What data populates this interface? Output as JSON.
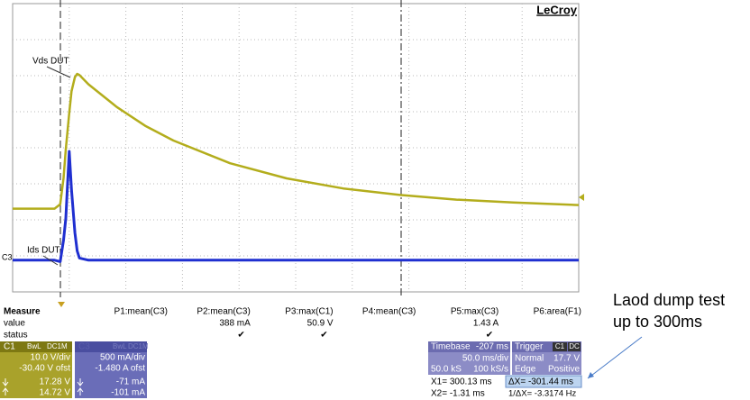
{
  "chart_data": {
    "type": "line",
    "brand": "LeCroy",
    "channel_marker": "C3",
    "x": [
      -42,
      -5,
      0,
      3,
      5,
      8,
      10,
      13,
      15,
      17,
      25,
      50,
      75,
      100,
      150,
      200,
      250,
      300,
      350,
      400,
      458
    ],
    "xlim": [
      -42,
      458
    ],
    "ylim": [
      -9.6,
      70.4
    ],
    "y2lim": [
      -0.52,
      3.48
    ],
    "grid": true,
    "series": [
      {
        "name": "Vds DUT",
        "color": "#b3ad1c",
        "values": [
          13.5,
          13.5,
          14.7,
          22,
          30,
          40,
          46,
          50,
          50.9,
          50.6,
          48.0,
          41.7,
          36.5,
          32.4,
          26.1,
          21.9,
          19.1,
          17.3,
          16.0,
          15.2,
          14.5
        ]
      },
      {
        "name": "Ids DUT",
        "color": "#1f2fd0",
        "axis": "y2",
        "values": [
          -0.08,
          -0.08,
          -0.1,
          0.2,
          0.5,
          1.43,
          0.9,
          0.3,
          0.05,
          -0.05,
          -0.08,
          -0.08,
          -0.08,
          -0.08,
          -0.08,
          -0.08,
          -0.08,
          -0.08,
          -0.08,
          -0.08,
          -0.08
        ]
      }
    ]
  },
  "measure": {
    "title": "Measure",
    "row_labels": [
      "value",
      "status"
    ],
    "columns": [
      {
        "name": "P1:mean(C3)"
      },
      {
        "name": "P2:mean(C3)",
        "value": "388 mA",
        "status": "✔"
      },
      {
        "name": "P3:max(C1)",
        "value": "50.9 V",
        "status": "✔"
      },
      {
        "name": "P4:mean(C3)"
      },
      {
        "name": "P5:max(C3)",
        "value": "1.43 A",
        "status": "✔"
      },
      {
        "name": "P6:area(F1)"
      }
    ]
  },
  "channels": [
    {
      "label": "C1",
      "tags": [
        "BwL",
        "DC1M"
      ],
      "scale": "10.0 V/div",
      "offset": "-30.40 V ofst",
      "cursor_values": [
        "17.28 V",
        "14.72 V"
      ]
    },
    {
      "label": "C3",
      "tags": [
        "BwL",
        "DC1M"
      ],
      "scale": "500 mA/div",
      "offset": "-1.480 A ofst",
      "cursor_values": [
        "-71 mA",
        "-101 mA"
      ]
    }
  ],
  "timebase": {
    "title": "Timebase",
    "delay": "-207 ms",
    "scale": "50.0 ms/div",
    "samples": "50.0 kS",
    "rate": "100 kS/s"
  },
  "trigger": {
    "title": "Trigger",
    "tags": [
      "C1",
      "DC"
    ],
    "mode": "Normal",
    "level": "17.7 V",
    "type": "Edge",
    "slope": "Positive"
  },
  "cursors": {
    "x1": "X1= 300.13 ms",
    "dx": "ΔX= -301.44 ms",
    "x2": "X2= -1.31 ms",
    "inv_dx": "1/ΔX= -3.3174 Hz"
  },
  "annotation": {
    "lines": [
      "Laod dump test",
      "up to 300ms"
    ]
  }
}
